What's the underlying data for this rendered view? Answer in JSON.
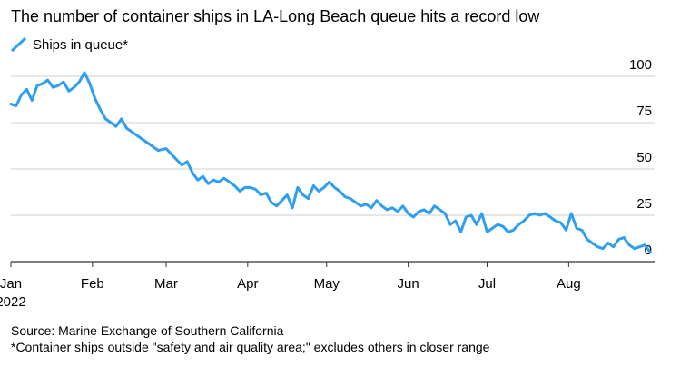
{
  "header": {
    "title": "The number of container ships in LA-Long Beach queue hits a record low"
  },
  "colors": {
    "series": "#2e9ef0",
    "grid": "#cfcfcf",
    "axis": "#333333",
    "text": "#000000"
  },
  "chart_data": {
    "type": "line",
    "title": "The number of container ships in LA-Long Beach queue hits a record low",
    "xlabel": "",
    "ylabel": "",
    "ylim": [
      0,
      100
    ],
    "y_ticks": [
      0,
      25,
      50,
      75,
      100
    ],
    "x_ticks": [
      {
        "label": "Jan",
        "sublabel": "2022",
        "date": "2022-01-01"
      },
      {
        "label": "Feb",
        "date": "2022-02-01"
      },
      {
        "label": "Mar",
        "date": "2022-03-01"
      },
      {
        "label": "Apr",
        "date": "2022-04-01"
      },
      {
        "label": "May",
        "date": "2022-05-01"
      },
      {
        "label": "Jun",
        "date": "2022-06-01"
      },
      {
        "label": "Jul",
        "date": "2022-07-01"
      },
      {
        "label": "Aug",
        "date": "2022-08-01"
      }
    ],
    "xlim": [
      "2022-01-01",
      "2022-09-03"
    ],
    "grid": true,
    "legend": "top-left",
    "series": [
      {
        "name": "Ships in queue*",
        "x": [
          "2022-01-01",
          "2022-01-03",
          "2022-01-05",
          "2022-01-07",
          "2022-01-09",
          "2022-01-11",
          "2022-01-13",
          "2022-01-15",
          "2022-01-17",
          "2022-01-19",
          "2022-01-21",
          "2022-01-23",
          "2022-01-25",
          "2022-01-27",
          "2022-01-29",
          "2022-01-31",
          "2022-02-02",
          "2022-02-04",
          "2022-02-06",
          "2022-02-08",
          "2022-02-10",
          "2022-02-12",
          "2022-02-14",
          "2022-02-16",
          "2022-02-18",
          "2022-02-20",
          "2022-02-22",
          "2022-02-24",
          "2022-02-26",
          "2022-03-01",
          "2022-03-03",
          "2022-03-05",
          "2022-03-07",
          "2022-03-09",
          "2022-03-11",
          "2022-03-13",
          "2022-03-15",
          "2022-03-17",
          "2022-03-19",
          "2022-03-21",
          "2022-03-23",
          "2022-03-25",
          "2022-03-27",
          "2022-03-29",
          "2022-03-31",
          "2022-04-02",
          "2022-04-04",
          "2022-04-06",
          "2022-04-08",
          "2022-04-10",
          "2022-04-12",
          "2022-04-14",
          "2022-04-16",
          "2022-04-18",
          "2022-04-20",
          "2022-04-22",
          "2022-04-24",
          "2022-04-26",
          "2022-04-28",
          "2022-04-30",
          "2022-05-02",
          "2022-05-04",
          "2022-05-06",
          "2022-05-08",
          "2022-05-10",
          "2022-05-12",
          "2022-05-14",
          "2022-05-16",
          "2022-05-18",
          "2022-05-20",
          "2022-05-22",
          "2022-05-24",
          "2022-05-26",
          "2022-05-28",
          "2022-05-30",
          "2022-06-01",
          "2022-06-03",
          "2022-06-05",
          "2022-06-07",
          "2022-06-09",
          "2022-06-11",
          "2022-06-13",
          "2022-06-15",
          "2022-06-17",
          "2022-06-19",
          "2022-06-21",
          "2022-06-23",
          "2022-06-25",
          "2022-06-27",
          "2022-06-29",
          "2022-07-01",
          "2022-07-03",
          "2022-07-05",
          "2022-07-07",
          "2022-07-09",
          "2022-07-11",
          "2022-07-13",
          "2022-07-15",
          "2022-07-17",
          "2022-07-19",
          "2022-07-21",
          "2022-07-23",
          "2022-07-25",
          "2022-07-27",
          "2022-07-29",
          "2022-07-31",
          "2022-08-02",
          "2022-08-04",
          "2022-08-06",
          "2022-08-08",
          "2022-08-10",
          "2022-08-12",
          "2022-08-14",
          "2022-08-16",
          "2022-08-18",
          "2022-08-20",
          "2022-08-22",
          "2022-08-24",
          "2022-08-26",
          "2022-08-28",
          "2022-08-30",
          "2022-09-01"
        ],
        "values": [
          85,
          84,
          90,
          93,
          87,
          95,
          96,
          98,
          94,
          95,
          97,
          92,
          94,
          97,
          102,
          96,
          88,
          82,
          77,
          75,
          73,
          77,
          72,
          70,
          68,
          66,
          64,
          62,
          60,
          61,
          58,
          55,
          52,
          54,
          48,
          44,
          46,
          42,
          44,
          43,
          45,
          43,
          41,
          38,
          40,
          40,
          39,
          36,
          37,
          32,
          30,
          33,
          36,
          29,
          40,
          36,
          34,
          41,
          38,
          40,
          43,
          40,
          38,
          35,
          34,
          32,
          30,
          31,
          29,
          33,
          30,
          28,
          29,
          27,
          30,
          26,
          24,
          27,
          28,
          26,
          30,
          28,
          26,
          20,
          22,
          16,
          24,
          25,
          20,
          26,
          16,
          18,
          20,
          19,
          16,
          17,
          20,
          22,
          25,
          26,
          25,
          26,
          24,
          22,
          21,
          17,
          26,
          18,
          17,
          12,
          10,
          8,
          7,
          10,
          8,
          12,
          13,
          9,
          7,
          8,
          9,
          5
        ]
      }
    ]
  },
  "footer": {
    "source": "Source: Marine Exchange of Southern California",
    "note": "*Container ships outside \"safety and air quality area;\" excludes others in closer range"
  }
}
